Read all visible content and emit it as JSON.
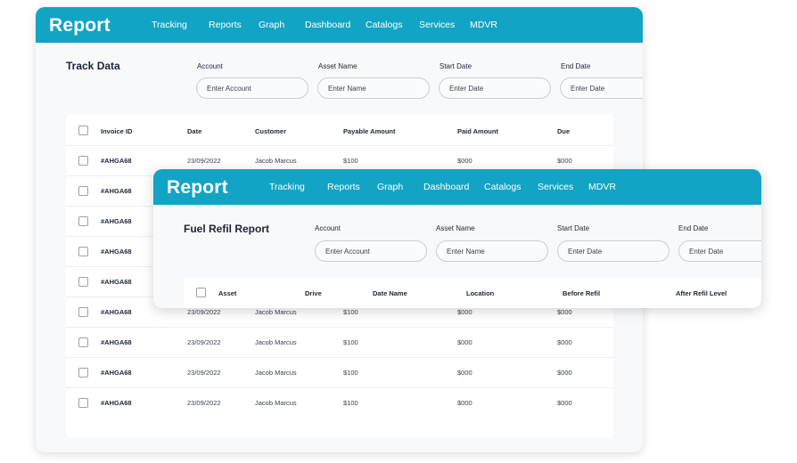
{
  "back_window": {
    "brand": "Report",
    "nav": [
      "Tracking",
      "Reports",
      "Graph",
      "Dashboard",
      "Catalogs",
      "Services",
      "MDVR"
    ],
    "section_title": "Track Data",
    "filters": [
      {
        "label": "Account",
        "placeholder": "Enter Account"
      },
      {
        "label": "Asset Name",
        "placeholder": "Enter Name"
      },
      {
        "label": "Start Date",
        "placeholder": "Enter Date"
      },
      {
        "label": "End Date",
        "placeholder": "Enter Date"
      }
    ],
    "table": {
      "headers": [
        "Invoice ID",
        "Date",
        "Customer",
        "Payable Amount",
        "Paid Amount",
        "Due"
      ],
      "rows": [
        [
          "#AHGA68",
          "23/09/2022",
          "Jacob Marcus",
          "$100",
          "$000",
          "$000"
        ],
        [
          "#AHGA68",
          "",
          "",
          "",
          "",
          ""
        ],
        [
          "#AHGA68",
          "",
          "",
          "",
          "",
          ""
        ],
        [
          "#AHGA68",
          "",
          "",
          "",
          "",
          ""
        ],
        [
          "#AHGA68",
          "",
          "",
          "",
          "",
          ""
        ],
        [
          "#AHGA68",
          "23/09/2022",
          "Jacob Marcus",
          "$100",
          "$000",
          "$000"
        ],
        [
          "#AHGA68",
          "23/09/2022",
          "Jacob Marcus",
          "$100",
          "$000",
          "$000"
        ],
        [
          "#AHGA68",
          "23/09/2022",
          "Jacob Marcus",
          "$100",
          "$000",
          "$000"
        ],
        [
          "#AHGA68",
          "23/09/2022",
          "Jacob Marcus",
          "$100",
          "$000",
          "$000"
        ]
      ]
    }
  },
  "front_window": {
    "brand": "Report",
    "nav": [
      "Tracking",
      "Reports",
      "Graph",
      "Dashboard",
      "Catalogs",
      "Services",
      "MDVR"
    ],
    "section_title": "Fuel Refil Report",
    "filters": [
      {
        "label": "Account",
        "placeholder": "Enter Account"
      },
      {
        "label": "Asset Name",
        "placeholder": "Enter Name"
      },
      {
        "label": "Start Date",
        "placeholder": "Enter Date"
      },
      {
        "label": "End Date",
        "placeholder": "Enter Date"
      }
    ],
    "table": {
      "headers": [
        "Asset",
        "Drive",
        "Date Name",
        "Location",
        "Before Refil",
        "After Refil Level"
      ]
    }
  },
  "colors": {
    "header_bar": "#12a4c4",
    "card_background": "#f8f9fb",
    "text_dark": "#1c2536"
  }
}
